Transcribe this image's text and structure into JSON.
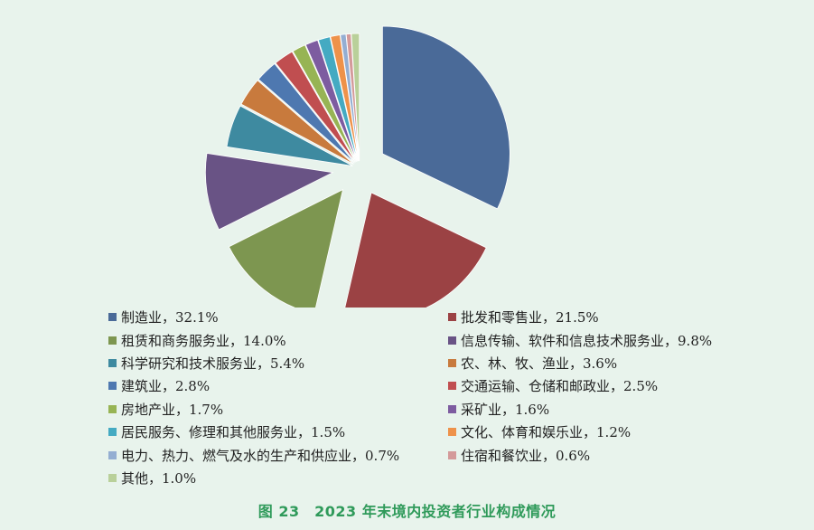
{
  "chart_data": {
    "type": "pie",
    "title": "",
    "slices": [
      {
        "label": "制造业",
        "value": 32.1,
        "value_label": "32.1%",
        "color": "#4a6a98"
      },
      {
        "label": "批发和零售业",
        "value": 21.5,
        "value_label": "21.5%",
        "color": "#9b4244"
      },
      {
        "label": "租赁和商务服务业",
        "value": 14.0,
        "value_label": "14.0%",
        "color": "#7d9650"
      },
      {
        "label": "信息传输、软件和信息技术服务业",
        "value": 9.8,
        "value_label": "9.8%",
        "color": "#695385"
      },
      {
        "label": "科学研究和技术服务业",
        "value": 5.4,
        "value_label": "5.4%",
        "color": "#3e8aa0"
      },
      {
        "label": "农、林、牧、渔业",
        "value": 3.6,
        "value_label": "3.6%",
        "color": "#c87a3d"
      },
      {
        "label": "建筑业",
        "value": 2.8,
        "value_label": "2.8%",
        "color": "#4e78b0"
      },
      {
        "label": "交通运输、仓储和邮政业",
        "value": 2.5,
        "value_label": "2.5%",
        "color": "#c04e50"
      },
      {
        "label": "房地产业",
        "value": 1.7,
        "value_label": "1.7%",
        "color": "#97b454"
      },
      {
        "label": "采矿业",
        "value": 1.6,
        "value_label": "1.6%",
        "color": "#7d5ca0"
      },
      {
        "label": "居民服务、修理和其他服务业",
        "value": 1.5,
        "value_label": "1.5%",
        "color": "#44aac2"
      },
      {
        "label": "文化、体育和娱乐业",
        "value": 1.2,
        "value_label": "1.2%",
        "color": "#ee924a"
      },
      {
        "label": "电力、热力、燃气及水的生产和供应业",
        "value": 0.7,
        "value_label": "0.7%",
        "color": "#94aed2"
      },
      {
        "label": "住宿和餐饮业",
        "value": 0.6,
        "value_label": "0.6%",
        "color": "#d49a9a"
      },
      {
        "label": "其他",
        "value": 1.0,
        "value_label": "1.0%",
        "color": "#b9d09a"
      }
    ],
    "legend_position": "bottom",
    "exploded": true
  },
  "legend": {
    "separator": "，"
  },
  "caption": "图 23　2023 年末境内投资者行业构成情况"
}
